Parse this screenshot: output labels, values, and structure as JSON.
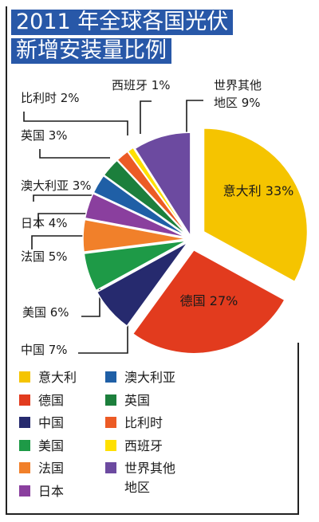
{
  "title_lines": [
    "2011 年全球各国光伏",
    "新增安装量比例"
  ],
  "chart_data": {
    "type": "pie",
    "unit": "%",
    "slices": [
      {
        "name": "意大利",
        "label": "意大利 33%",
        "value": 33,
        "color": "#f5c400"
      },
      {
        "name": "德国",
        "label": "德国 27%",
        "value": 27,
        "color": "#e23b1e"
      },
      {
        "name": "中国",
        "label": "中国 7%",
        "value": 7,
        "color": "#262a6e"
      },
      {
        "name": "美国",
        "label": "美国 6%",
        "value": 6,
        "color": "#1e9a47"
      },
      {
        "name": "法国",
        "label": "法国 5%",
        "value": 5,
        "color": "#f1802a"
      },
      {
        "name": "日本",
        "label": "日本 4%",
        "value": 4,
        "color": "#8a3f9e"
      },
      {
        "name": "澳大利亚",
        "label": "澳大利亚 3%",
        "value": 3,
        "color": "#1f5fa6"
      },
      {
        "name": "英国",
        "label": "英国 3%",
        "value": 3,
        "color": "#1c7f3c"
      },
      {
        "name": "比利时",
        "label": "比利时 2%",
        "value": 2,
        "color": "#ec5b25"
      },
      {
        "name": "西班牙",
        "label": "西班牙 1%",
        "value": 1,
        "color": "#ffe000"
      },
      {
        "name": "世界其他地区",
        "label": "世界其他\n地区 9%",
        "value": 9,
        "color": "#6c4aa0"
      }
    ]
  },
  "legend": [
    {
      "text": "意大利",
      "color": "#f5c400"
    },
    {
      "text": "德国",
      "color": "#e23b1e"
    },
    {
      "text": "中国",
      "color": "#262a6e"
    },
    {
      "text": "美国",
      "color": "#1e9a47"
    },
    {
      "text": "法国",
      "color": "#f1802a"
    },
    {
      "text": "日本",
      "color": "#8a3f9e"
    },
    {
      "text": "澳大利亚",
      "color": "#1f5fa6"
    },
    {
      "text": "英国",
      "color": "#1c7f3c"
    },
    {
      "text": "比利时",
      "color": "#ec5b25"
    },
    {
      "text": "西班牙",
      "color": "#ffe000"
    },
    {
      "text": "世界其他\n地区",
      "color": "#6c4aa0"
    }
  ]
}
